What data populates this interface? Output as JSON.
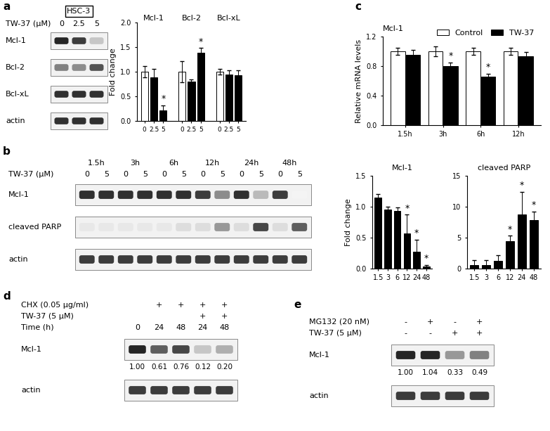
{
  "chart_data": [
    {
      "type": "blot",
      "panel": "a",
      "title": "HSC-3",
      "header": [
        {
          "label": "TW-37 (μM)",
          "lanes": [
            "0",
            "2.5",
            "5"
          ]
        }
      ],
      "bands": [
        {
          "name": "Mcl-1",
          "intensities": [
            0.95,
            0.85,
            0.25
          ]
        },
        {
          "name": "Bcl-2",
          "intensities": [
            0.55,
            0.5,
            0.75
          ]
        },
        {
          "name": "Bcl-xL",
          "intensities": [
            0.9,
            0.9,
            0.9
          ]
        },
        {
          "name": "actin",
          "intensities": [
            0.9,
            0.9,
            0.9
          ]
        }
      ]
    },
    {
      "type": "bar",
      "ylabel": "Fold change",
      "groups": [
        "Mcl-1",
        "Bcl-2",
        "Bcl-xL"
      ],
      "categories": [
        "0",
        "2.5",
        "5"
      ],
      "colors": [
        "#ffffff",
        "#000000",
        "#000000"
      ],
      "values": [
        [
          1.0,
          0.88,
          0.22
        ],
        [
          1.0,
          0.8,
          1.38
        ],
        [
          1.0,
          0.95,
          0.93
        ]
      ],
      "errors": [
        [
          0.12,
          0.18,
          0.1
        ],
        [
          0.22,
          0.04,
          0.1
        ],
        [
          0.06,
          0.08,
          0.1
        ]
      ],
      "significance": [
        [
          false,
          false,
          true
        ],
        [
          false,
          false,
          true
        ],
        [
          false,
          false,
          false
        ]
      ],
      "significance_label": "*",
      "ylim": [
        0,
        2.0
      ],
      "yticks": [
        {
          "value": 0,
          "label": "0.0"
        },
        0.5,
        1.0,
        1.5,
        2.0
      ]
    },
    {
      "type": "bar",
      "panel": "c",
      "title": "Mcl-1",
      "ylabel": "Relative mRNA levels",
      "categories": [
        "1.5h",
        "3h",
        "6h",
        "12h"
      ],
      "series": [
        {
          "name": "Control",
          "color": "#ffffff",
          "values": [
            1.0,
            1.0,
            1.0,
            1.0
          ],
          "errors": [
            0.05,
            0.07,
            0.05,
            0.05
          ],
          "significance": [
            false,
            false,
            false,
            false
          ]
        },
        {
          "name": "TW-37",
          "color": "#000000",
          "values": [
            0.95,
            0.8,
            0.66,
            0.93
          ],
          "errors": [
            0.07,
            0.05,
            0.04,
            0.06
          ],
          "significance": [
            false,
            true,
            true,
            false
          ]
        }
      ],
      "significance_label": "*",
      "legend": "upper right",
      "ylim": [
        0,
        1.2
      ],
      "yticks": [
        {
          "value": 0,
          "label": "0.0"
        },
        0.4,
        0.8,
        1.2
      ]
    },
    {
      "type": "blot",
      "panel": "b",
      "header": [
        {
          "groups": [
            "1.5h",
            "3h",
            "6h",
            "12h",
            "24h",
            "48h"
          ]
        },
        {
          "label": "TW-37 (μM)",
          "lanes": [
            "0",
            "5",
            "0",
            "5",
            "0",
            "5",
            "0",
            "5",
            "0",
            "5",
            "0",
            "5"
          ]
        }
      ],
      "bands": [
        {
          "name": "Mcl-1",
          "intensities": [
            0.9,
            0.9,
            0.9,
            0.9,
            0.9,
            0.9,
            0.85,
            0.5,
            0.9,
            0.3,
            0.85,
            0.05
          ]
        },
        {
          "name": "cleaved PARP",
          "intensities": [
            0.1,
            0.1,
            0.1,
            0.1,
            0.1,
            0.15,
            0.15,
            0.45,
            0.15,
            0.8,
            0.15,
            0.7
          ]
        },
        {
          "name": "actin",
          "intensities": [
            0.85,
            0.85,
            0.85,
            0.85,
            0.85,
            0.85,
            0.85,
            0.85,
            0.85,
            0.85,
            0.85,
            0.85
          ]
        }
      ]
    },
    {
      "type": "bar",
      "title": "Mcl-1",
      "ylabel": "Fold change",
      "categories": [
        "1.5",
        "3",
        "6",
        "12",
        "24",
        "48"
      ],
      "color": "#000000",
      "values": [
        1.15,
        0.95,
        0.93,
        0.57,
        0.27,
        0.03
      ],
      "errors": [
        0.05,
        0.05,
        0.06,
        0.3,
        0.2,
        0.03
      ],
      "significance": [
        false,
        false,
        false,
        true,
        true,
        true
      ],
      "significance_label": "*",
      "ylim": [
        0,
        1.5
      ],
      "yticks": [
        {
          "value": 0,
          "label": "0.0"
        },
        0.5,
        1.0,
        1.5
      ]
    },
    {
      "type": "bar",
      "title": "cleaved PARP",
      "categories": [
        "1.5",
        "3",
        "6",
        "12",
        "24",
        "48"
      ],
      "color": "#000000",
      "values": [
        0.6,
        0.6,
        1.3,
        4.4,
        8.7,
        7.8
      ],
      "errors": [
        0.8,
        0.8,
        0.9,
        0.9,
        3.7,
        1.4
      ],
      "significance": [
        false,
        false,
        false,
        true,
        true,
        true
      ],
      "significance_label": "*",
      "ylim": [
        0,
        15
      ],
      "yticks": [
        0,
        5,
        10,
        15
      ]
    },
    {
      "type": "blot",
      "panel": "d",
      "header": [
        {
          "label": "CHX (0.05 μg/ml)",
          "lanes": [
            null,
            "+",
            "+",
            "+",
            "+"
          ]
        },
        {
          "label": "TW-37 (5 μM)",
          "lanes": [
            null,
            null,
            null,
            "+",
            "+"
          ]
        },
        {
          "label": "Time (h)",
          "lanes": [
            "0",
            "24",
            "48",
            "24",
            "48"
          ]
        }
      ],
      "bands": [
        {
          "name": "Mcl-1",
          "intensities": [
            0.95,
            0.7,
            0.8,
            0.25,
            0.35
          ],
          "values": [
            1.0,
            0.61,
            0.76,
            0.12,
            0.2
          ],
          "value_labels": [
            "1.00",
            "0.61",
            "0.76",
            "0.12",
            "0.20"
          ]
        },
        {
          "name": "actin",
          "intensities": [
            0.85,
            0.85,
            0.85,
            0.85,
            0.85
          ]
        }
      ]
    },
    {
      "type": "blot",
      "panel": "e",
      "header": [
        {
          "label": "MG132 (20 nM)",
          "lanes": [
            "-",
            "+",
            "-",
            "+"
          ]
        },
        {
          "label": "TW-37 (5 μM)",
          "lanes": [
            "-",
            "-",
            "+",
            "+"
          ]
        }
      ],
      "bands": [
        {
          "name": "Mcl-1",
          "intensities": [
            0.95,
            0.95,
            0.45,
            0.55
          ],
          "values": [
            1.0,
            1.04,
            0.33,
            0.49
          ],
          "value_labels": [
            "1.00",
            "1.04",
            "0.33",
            "0.49"
          ]
        },
        {
          "name": "actin",
          "intensities": [
            0.85,
            0.85,
            0.85,
            0.85
          ]
        }
      ]
    }
  ]
}
